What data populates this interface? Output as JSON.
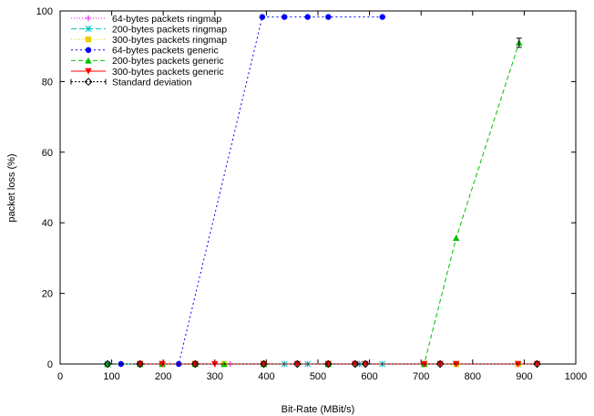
{
  "chart_data": {
    "type": "line",
    "title": "",
    "xlabel": "Bit-Rate (MBit/s)",
    "ylabel": "packet loss (%)",
    "xlim": [
      0,
      1000
    ],
    "ylim": [
      0,
      100
    ],
    "xticks": [
      0,
      100,
      200,
      300,
      400,
      500,
      600,
      700,
      800,
      900,
      1000
    ],
    "yticks": [
      0,
      20,
      40,
      60,
      80,
      100
    ],
    "grid": false,
    "legend_position": "top-left",
    "series": [
      {
        "name": "64-bytes packets ringmap",
        "color": "#ff00ff",
        "dash": "1,2",
        "marker": "plus",
        "points": [
          [
            92,
            0
          ],
          [
            118,
            0
          ],
          [
            155,
            0
          ],
          [
            198,
            0
          ],
          [
            230,
            0
          ],
          [
            262,
            0
          ],
          [
            300,
            0
          ],
          [
            330,
            0
          ],
          [
            395,
            0
          ],
          [
            435,
            0
          ],
          [
            480,
            0
          ],
          [
            520,
            0
          ],
          [
            580,
            0
          ],
          [
            625,
            0
          ]
        ]
      },
      {
        "name": "200-bytes packets ringmap",
        "color": "#00c0c0",
        "dash": "6,3",
        "marker": "star",
        "points": [
          [
            92,
            0
          ],
          [
            155,
            0
          ],
          [
            198,
            0
          ],
          [
            262,
            0
          ],
          [
            318,
            0
          ],
          [
            395,
            0
          ],
          [
            435,
            0
          ],
          [
            480,
            0
          ],
          [
            520,
            0
          ],
          [
            580,
            0
          ],
          [
            625,
            0
          ],
          [
            706,
            0
          ],
          [
            768,
            0
          ],
          [
            888,
            0
          ]
        ]
      },
      {
        "name": "300-bytes packets ringmap",
        "color": "#e8d000",
        "dash": "1,2",
        "marker": "square",
        "points": [
          [
            155,
            0
          ],
          [
            198,
            0
          ],
          [
            262,
            0
          ],
          [
            318,
            0
          ],
          [
            395,
            0
          ],
          [
            520,
            0
          ],
          [
            706,
            0
          ],
          [
            768,
            0
          ],
          [
            888,
            0
          ]
        ]
      },
      {
        "name": "64-bytes packets generic",
        "color": "#0000ff",
        "dash": "2,3",
        "marker": "circle",
        "points": [
          [
            92,
            0
          ],
          [
            118,
            0
          ],
          [
            155,
            0
          ],
          [
            230,
            0
          ],
          [
            392,
            98.3
          ],
          [
            435,
            98.3
          ],
          [
            480,
            98.3
          ],
          [
            520,
            98.3
          ],
          [
            625,
            98.3
          ]
        ]
      },
      {
        "name": "200-bytes packets generic",
        "color": "#00c000",
        "dash": "5,3",
        "marker": "triangle-up",
        "points": [
          [
            92,
            0
          ],
          [
            155,
            0
          ],
          [
            198,
            0
          ],
          [
            262,
            0
          ],
          [
            318,
            0
          ],
          [
            395,
            0
          ],
          [
            520,
            0
          ],
          [
            706,
            0
          ],
          [
            768,
            35.7
          ],
          [
            890,
            91
          ]
        ]
      },
      {
        "name": "300-bytes packets generic",
        "color": "#ff0000",
        "dash": "",
        "marker": "triangle-down",
        "points": [
          [
            155,
            0
          ],
          [
            198,
            0
          ],
          [
            262,
            0
          ],
          [
            300,
            0
          ],
          [
            395,
            0
          ],
          [
            460,
            0
          ],
          [
            520,
            0
          ],
          [
            572,
            0
          ],
          [
            592,
            0
          ],
          [
            706,
            0
          ],
          [
            737,
            0
          ],
          [
            768,
            0
          ],
          [
            888,
            0
          ],
          [
            925,
            0
          ]
        ]
      },
      {
        "name": "Standard deviation",
        "color": "#000000",
        "dash": "2,2",
        "marker": "diamond",
        "points": [
          [
            92,
            0
          ],
          [
            155,
            0
          ],
          [
            262,
            0
          ],
          [
            395,
            0
          ],
          [
            460,
            0
          ],
          [
            520,
            0
          ],
          [
            572,
            0
          ],
          [
            592,
            0
          ],
          [
            737,
            0
          ],
          [
            925,
            0
          ]
        ]
      }
    ]
  }
}
